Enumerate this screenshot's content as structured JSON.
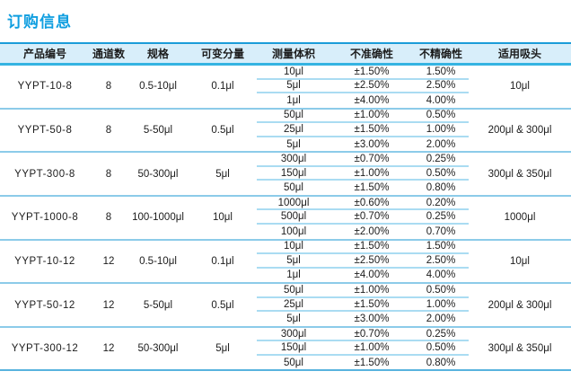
{
  "page": {
    "title": "订购信息"
  },
  "palette": {
    "accent": "#0f9ee0",
    "header_background": "#d8eefa",
    "header_top_line": "#1b9cd9",
    "header_bottom_line": "#35b4e2",
    "group_separator_line": "#8ccbe9",
    "subrow_separator_line": "#aadcf2",
    "table_bottom_line": "#58b3de",
    "text": "#1c1c1c"
  },
  "table": {
    "headers": [
      "产品编号",
      "通道数",
      "规格",
      "可变分量",
      "测量体积",
      "不准确性",
      "不精确性",
      "适用吸头"
    ],
    "groups": [
      {
        "product": "YYPT-10-8",
        "channels": "8",
        "spec": "0.5-10μl",
        "increment": "0.1μl",
        "tip": "10μl",
        "rows": [
          {
            "volume": "10μl",
            "inaccuracy": "±1.50%",
            "imprecision": "1.50%"
          },
          {
            "volume": "5μl",
            "inaccuracy": "±2.50%",
            "imprecision": "2.50%"
          },
          {
            "volume": "1μl",
            "inaccuracy": "±4.00%",
            "imprecision": "4.00%"
          }
        ]
      },
      {
        "product": "YYPT-50-8",
        "channels": "8",
        "spec": "5-50μl",
        "increment": "0.5μl",
        "tip": "200μl & 300μl",
        "rows": [
          {
            "volume": "50μl",
            "inaccuracy": "±1.00%",
            "imprecision": "0.50%"
          },
          {
            "volume": "25μl",
            "inaccuracy": "±1.50%",
            "imprecision": "1.00%"
          },
          {
            "volume": "5μl",
            "inaccuracy": "±3.00%",
            "imprecision": "2.00%"
          }
        ]
      },
      {
        "product": "YYPT-300-8",
        "channels": "8",
        "spec": "50-300μl",
        "increment": "5μl",
        "tip": "300μl & 350μl",
        "rows": [
          {
            "volume": "300μl",
            "inaccuracy": "±0.70%",
            "imprecision": "0.25%"
          },
          {
            "volume": "150μl",
            "inaccuracy": "±1.00%",
            "imprecision": "0.50%"
          },
          {
            "volume": "50μl",
            "inaccuracy": "±1.50%",
            "imprecision": "0.80%"
          }
        ]
      },
      {
        "product": "YYPT-1000-8",
        "channels": "8",
        "spec": "100-1000μl",
        "increment": "10μl",
        "tip": "1000μl",
        "rows": [
          {
            "volume": "1000μl",
            "inaccuracy": "±0.60%",
            "imprecision": "0.20%"
          },
          {
            "volume": "500μl",
            "inaccuracy": "±0.70%",
            "imprecision": "0.25%"
          },
          {
            "volume": "100μl",
            "inaccuracy": "±2.00%",
            "imprecision": "0.70%"
          }
        ]
      },
      {
        "product": "YYPT-10-12",
        "channels": "12",
        "spec": "0.5-10μl",
        "increment": "0.1μl",
        "tip": "10μl",
        "rows": [
          {
            "volume": "10μl",
            "inaccuracy": "±1.50%",
            "imprecision": "1.50%"
          },
          {
            "volume": "5μl",
            "inaccuracy": "±2.50%",
            "imprecision": "2.50%"
          },
          {
            "volume": "1μl",
            "inaccuracy": "±4.00%",
            "imprecision": "4.00%"
          }
        ]
      },
      {
        "product": "YYPT-50-12",
        "channels": "12",
        "spec": "5-50μl",
        "increment": "0.5μl",
        "tip": "200μl & 300μl",
        "rows": [
          {
            "volume": "50μl",
            "inaccuracy": "±1.00%",
            "imprecision": "0.50%"
          },
          {
            "volume": "25μl",
            "inaccuracy": "±1.50%",
            "imprecision": "1.00%"
          },
          {
            "volume": "5μl",
            "inaccuracy": "±3.00%",
            "imprecision": "2.00%"
          }
        ]
      },
      {
        "product": "YYPT-300-12",
        "channels": "12",
        "spec": "50-300μl",
        "increment": "5μl",
        "tip": "300μl & 350μl",
        "rows": [
          {
            "volume": "300μl",
            "inaccuracy": "±0.70%",
            "imprecision": "0.25%"
          },
          {
            "volume": "150μl",
            "inaccuracy": "±1.00%",
            "imprecision": "0.50%"
          },
          {
            "volume": "50μl",
            "inaccuracy": "±1.50%",
            "imprecision": "0.80%"
          }
        ]
      }
    ]
  }
}
